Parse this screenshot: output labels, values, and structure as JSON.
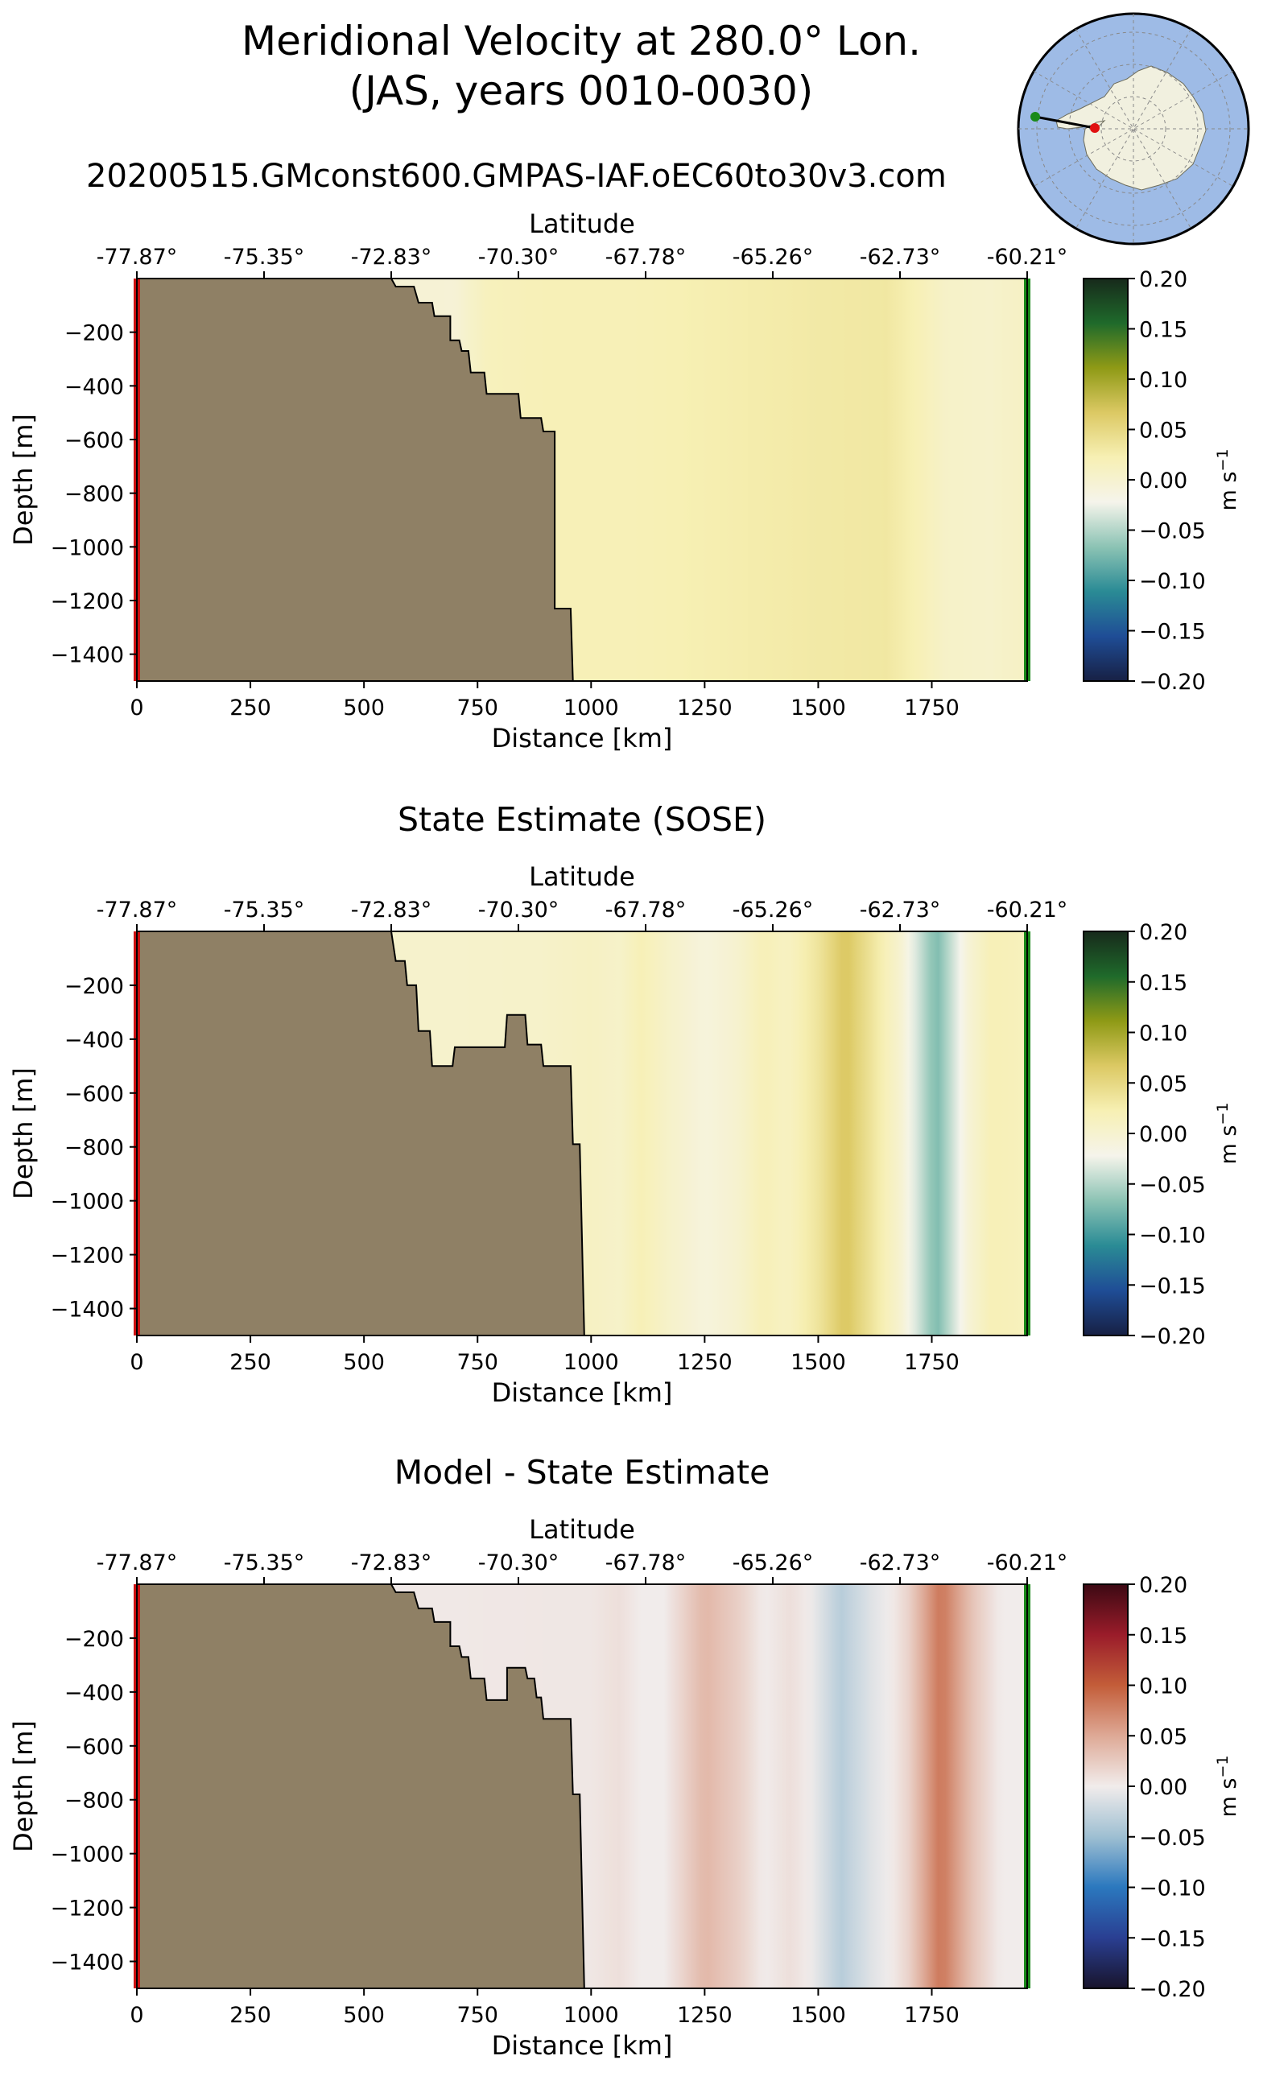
{
  "figure": {
    "title_line1": "Meridional Velocity at 280.0° Lon.",
    "title_line2": "(JAS, years 0010-0030)",
    "run_name": "20200515.GMconst600.GMPAS-IAF.oEC60to30v3.com",
    "inset_map": {
      "name": "Antarctic polar map with transect",
      "start_color": "#1a8a1a",
      "end_color": "#e01010",
      "ocean_color": "#9ebbe6",
      "land_color": "#f1f0df"
    }
  },
  "chart_data": [
    {
      "type": "heatmap",
      "title": "",
      "xlabel": "Distance [km]",
      "ylabel": "Depth [m]",
      "top_xlabel": "Latitude",
      "colorbar_label": "m s",
      "colorbar_label_sup": "−1",
      "colormap": "delta (blue–white–yellow–green)",
      "colormap_colors": [
        "#172044",
        "#1f4d96",
        "#2a8b95",
        "#8cc3b4",
        "#f5f4eb",
        "#f7f0b4",
        "#dcc964",
        "#8f9a16",
        "#1f6a2b",
        "#172a1b"
      ],
      "xlim": [
        0,
        1960
      ],
      "ylim": [
        -1500,
        0
      ],
      "x_ticks": [
        0,
        250,
        500,
        750,
        1000,
        1250,
        1500,
        1750
      ],
      "y_ticks": [
        -200,
        -400,
        -600,
        -800,
        -1000,
        -1200,
        -1400
      ],
      "y_tick_labels": [
        "−200",
        "−400",
        "−600",
        "−800",
        "−1000",
        "−1200",
        "−1400"
      ],
      "top_ticks": [
        "-77.87°",
        "-75.35°",
        "-72.83°",
        "-70.30°",
        "-67.78°",
        "-65.26°",
        "-62.73°",
        "-60.21°"
      ],
      "colorbar_ticks": [
        0.2,
        0.15,
        0.1,
        0.05,
        0.0,
        -0.05,
        -0.1,
        -0.15,
        -0.2
      ],
      "colorbar_tick_labels": [
        "0.20",
        "0.15",
        "0.10",
        "0.05",
        "0.00",
        "−0.05",
        "−0.10",
        "−0.15",
        "−0.20"
      ],
      "clim": [
        -0.2,
        0.2
      ],
      "bathymetry_km_m": [
        [
          560,
          0
        ],
        [
          570,
          -30
        ],
        [
          610,
          -30
        ],
        [
          620,
          -90
        ],
        [
          650,
          -90
        ],
        [
          655,
          -140
        ],
        [
          690,
          -140
        ],
        [
          690,
          -230
        ],
        [
          710,
          -230
        ],
        [
          715,
          -270
        ],
        [
          730,
          -270
        ],
        [
          735,
          -350
        ],
        [
          765,
          -350
        ],
        [
          770,
          -430
        ],
        [
          840,
          -430
        ],
        [
          845,
          -520
        ],
        [
          890,
          -520
        ],
        [
          895,
          -570
        ],
        [
          920,
          -570
        ],
        [
          920,
          -1230
        ],
        [
          955,
          -1230
        ],
        [
          960,
          -1500
        ]
      ],
      "velocity_profile_km_ms": [
        [
          0,
          0.0
        ],
        [
          700,
          -0.005
        ],
        [
          770,
          0.015
        ],
        [
          900,
          0.02
        ],
        [
          1100,
          0.02
        ],
        [
          1300,
          0.025
        ],
        [
          1500,
          0.03
        ],
        [
          1650,
          0.032
        ],
        [
          1720,
          0.02
        ],
        [
          1780,
          0.006
        ],
        [
          1880,
          0.003
        ],
        [
          1960,
          0.01
        ]
      ]
    },
    {
      "type": "heatmap",
      "title": "State Estimate (SOSE)",
      "xlabel": "Distance [km]",
      "ylabel": "Depth [m]",
      "top_xlabel": "Latitude",
      "colorbar_label": "m s",
      "colorbar_label_sup": "−1",
      "colormap": "delta (blue–white–yellow–green)",
      "colormap_colors": [
        "#172044",
        "#1f4d96",
        "#2a8b95",
        "#8cc3b4",
        "#f5f4eb",
        "#f7f0b4",
        "#dcc964",
        "#8f9a16",
        "#1f6a2b",
        "#172a1b"
      ],
      "xlim": [
        0,
        1960
      ],
      "ylim": [
        -1500,
        0
      ],
      "x_ticks": [
        0,
        250,
        500,
        750,
        1000,
        1250,
        1500,
        1750
      ],
      "y_ticks": [
        -200,
        -400,
        -600,
        -800,
        -1000,
        -1200,
        -1400
      ],
      "y_tick_labels": [
        "−200",
        "−400",
        "−600",
        "−800",
        "−1000",
        "−1200",
        "−1400"
      ],
      "top_ticks": [
        "-77.87°",
        "-75.35°",
        "-72.83°",
        "-70.30°",
        "-67.78°",
        "-65.26°",
        "-62.73°",
        "-60.21°"
      ],
      "colorbar_ticks": [
        0.2,
        0.15,
        0.1,
        0.05,
        0.0,
        -0.05,
        -0.1,
        -0.15,
        -0.2
      ],
      "colorbar_tick_labels": [
        "0.20",
        "0.15",
        "0.10",
        "0.05",
        "0.00",
        "−0.05",
        "−0.10",
        "−0.15",
        "−0.20"
      ],
      "clim": [
        -0.2,
        0.2
      ],
      "bathymetry_km_m": [
        [
          560,
          0
        ],
        [
          570,
          -110
        ],
        [
          590,
          -110
        ],
        [
          595,
          -200
        ],
        [
          615,
          -200
        ],
        [
          620,
          -370
        ],
        [
          645,
          -370
        ],
        [
          650,
          -500
        ],
        [
          695,
          -500
        ],
        [
          700,
          -430
        ],
        [
          810,
          -430
        ],
        [
          815,
          -310
        ],
        [
          855,
          -310
        ],
        [
          860,
          -420
        ],
        [
          890,
          -420
        ],
        [
          895,
          -500
        ],
        [
          955,
          -500
        ],
        [
          960,
          -790
        ],
        [
          975,
          -790
        ],
        [
          985,
          -1500
        ]
      ],
      "velocity_profile_km_ms": [
        [
          0,
          0.0
        ],
        [
          700,
          0.003
        ],
        [
          900,
          0.005
        ],
        [
          1000,
          0.01
        ],
        [
          1060,
          0.005
        ],
        [
          1110,
          0.02
        ],
        [
          1170,
          0.005
        ],
        [
          1250,
          -0.01
        ],
        [
          1320,
          0.0
        ],
        [
          1380,
          0.02
        ],
        [
          1430,
          0.01
        ],
        [
          1500,
          0.035
        ],
        [
          1560,
          0.07
        ],
        [
          1620,
          0.035
        ],
        [
          1680,
          0.0
        ],
        [
          1760,
          -0.075
        ],
        [
          1830,
          -0.005
        ],
        [
          1880,
          0.02
        ],
        [
          1960,
          0.015
        ]
      ]
    },
    {
      "type": "heatmap",
      "title": "Model - State Estimate",
      "xlabel": "Distance [km]",
      "ylabel": "Depth [m]",
      "top_xlabel": "Latitude",
      "colorbar_label": "m s",
      "colorbar_label_sup": "−1",
      "colormap": "balance (blue–white–red)",
      "colormap_colors": [
        "#18142c",
        "#2a3f92",
        "#2b78be",
        "#9ebfd2",
        "#f1eceb",
        "#dea996",
        "#c35d39",
        "#9a1c2a",
        "#3c0913"
      ],
      "xlim": [
        0,
        1960
      ],
      "ylim": [
        -1500,
        0
      ],
      "x_ticks": [
        0,
        250,
        500,
        750,
        1000,
        1250,
        1500,
        1750
      ],
      "y_ticks": [
        -200,
        -400,
        -600,
        -800,
        -1000,
        -1200,
        -1400
      ],
      "y_tick_labels": [
        "−200",
        "−400",
        "−600",
        "−800",
        "−1000",
        "−1200",
        "−1400"
      ],
      "top_ticks": [
        "-77.87°",
        "-75.35°",
        "-72.83°",
        "-70.30°",
        "-67.78°",
        "-65.26°",
        "-62.73°",
        "-60.21°"
      ],
      "colorbar_ticks": [
        0.2,
        0.15,
        0.1,
        0.05,
        0.0,
        -0.05,
        -0.1,
        -0.15,
        -0.2
      ],
      "colorbar_tick_labels": [
        "0.20",
        "0.15",
        "0.10",
        "0.05",
        "0.00",
        "−0.05",
        "−0.10",
        "−0.15",
        "−0.20"
      ],
      "clim": [
        -0.2,
        0.2
      ],
      "bathymetry_km_m": [
        [
          560,
          0
        ],
        [
          570,
          -30
        ],
        [
          610,
          -30
        ],
        [
          620,
          -90
        ],
        [
          650,
          -90
        ],
        [
          655,
          -140
        ],
        [
          690,
          -140
        ],
        [
          690,
          -230
        ],
        [
          710,
          -230
        ],
        [
          715,
          -270
        ],
        [
          730,
          -270
        ],
        [
          735,
          -350
        ],
        [
          765,
          -350
        ],
        [
          770,
          -430
        ],
        [
          815,
          -430
        ],
        [
          815,
          -310
        ],
        [
          855,
          -310
        ],
        [
          860,
          -350
        ],
        [
          875,
          -350
        ],
        [
          880,
          -420
        ],
        [
          890,
          -420
        ],
        [
          895,
          -500
        ],
        [
          955,
          -500
        ],
        [
          960,
          -780
        ],
        [
          975,
          -780
        ],
        [
          985,
          -1500
        ]
      ],
      "velocity_profile_km_ms": [
        [
          0,
          0.0
        ],
        [
          900,
          0.004
        ],
        [
          1000,
          0.004
        ],
        [
          1060,
          0.01
        ],
        [
          1110,
          0.0
        ],
        [
          1160,
          0.0
        ],
        [
          1250,
          0.04
        ],
        [
          1330,
          0.02
        ],
        [
          1380,
          0.0
        ],
        [
          1440,
          0.01
        ],
        [
          1480,
          0.0
        ],
        [
          1550,
          -0.035
        ],
        [
          1620,
          -0.01
        ],
        [
          1660,
          0.0
        ],
        [
          1700,
          0.02
        ],
        [
          1770,
          0.085
        ],
        [
          1840,
          0.03
        ],
        [
          1900,
          0.0
        ],
        [
          1960,
          0.0
        ]
      ]
    }
  ]
}
